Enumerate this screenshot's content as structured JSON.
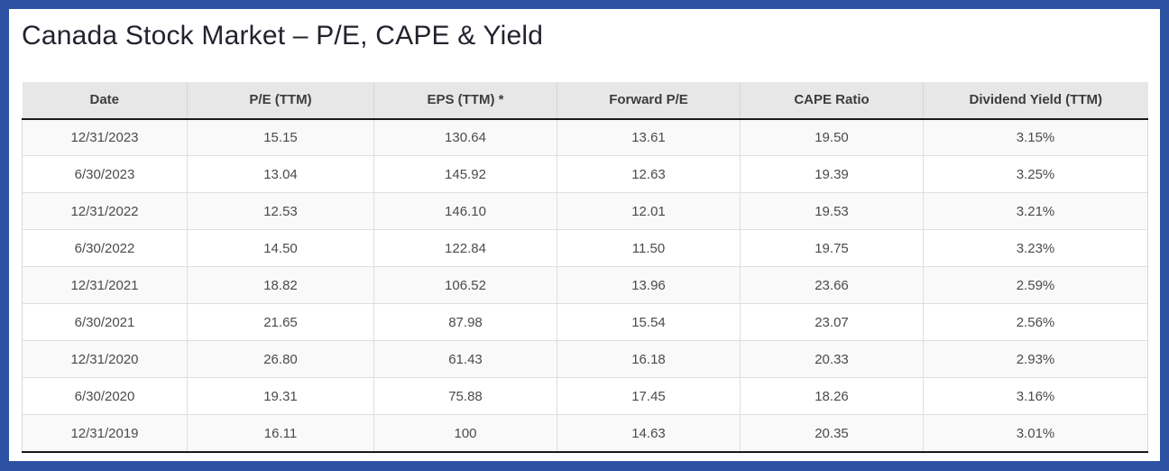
{
  "title": "Canada Stock Market – P/E, CAPE & Yield",
  "colors": {
    "frame": "#2d52a4",
    "header_background": "#e7e7e7",
    "alt_row_background": "#f9f9f9",
    "dark_rule": "#191919",
    "title_text": "#22232e"
  },
  "chart_data": {
    "type": "table",
    "title": "Canada Stock Market – P/E, CAPE & Yield",
    "columns": [
      "Date",
      "P/E (TTM)",
      "EPS (TTM) *",
      "Forward P/E",
      "CAPE Ratio",
      "Dividend Yield (TTM)"
    ],
    "rows": [
      [
        "12/31/2023",
        "15.15",
        "130.64",
        "13.61",
        "19.50",
        "3.15%"
      ],
      [
        "6/30/2023",
        "13.04",
        "145.92",
        "12.63",
        "19.39",
        "3.25%"
      ],
      [
        "12/31/2022",
        "12.53",
        "146.10",
        "12.01",
        "19.53",
        "3.21%"
      ],
      [
        "6/30/2022",
        "14.50",
        "122.84",
        "11.50",
        "19.75",
        "3.23%"
      ],
      [
        "12/31/2021",
        "18.82",
        "106.52",
        "13.96",
        "23.66",
        "2.59%"
      ],
      [
        "6/30/2021",
        "21.65",
        "87.98",
        "15.54",
        "23.07",
        "2.56%"
      ],
      [
        "12/31/2020",
        "26.80",
        "61.43",
        "16.18",
        "20.33",
        "2.93%"
      ],
      [
        "6/30/2020",
        "19.31",
        "75.88",
        "17.45",
        "18.26",
        "3.16%"
      ],
      [
        "12/31/2019",
        "16.11",
        "100",
        "14.63",
        "20.35",
        "3.01%"
      ]
    ]
  }
}
